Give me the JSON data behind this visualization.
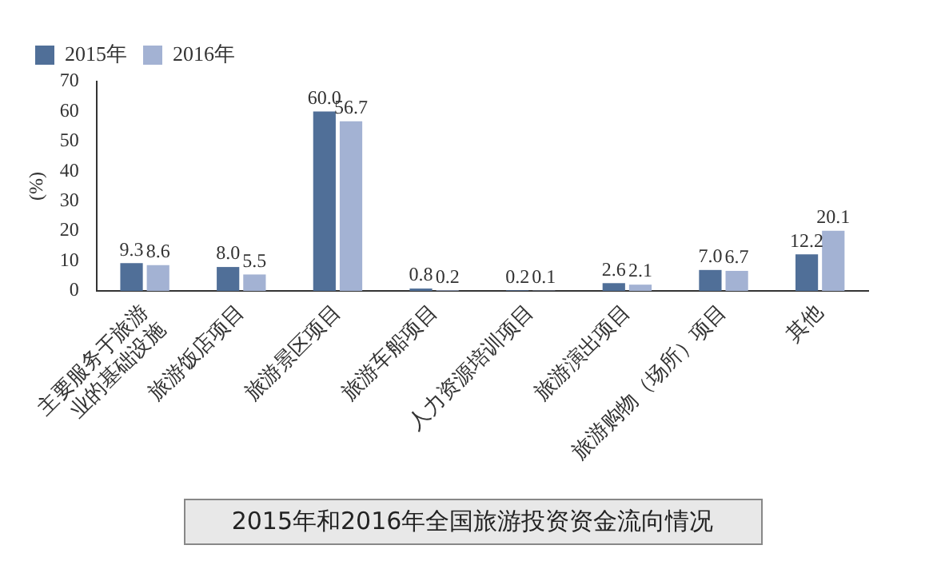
{
  "chart_data": {
    "type": "bar",
    "title": "2015年和2016年全国旅游投资资金流向情况",
    "ylabel": "(%)",
    "categories": [
      "主要服务于旅游业的基础设施",
      "旅游饭店项目",
      "旅游景区项目",
      "旅游车船项目",
      "人力资源培训项目",
      "旅游演出项目",
      "旅游购物（场所）项目",
      "其他"
    ],
    "series": [
      {
        "name": "2015年",
        "color": "#506f98",
        "values": [
          9.3,
          8.0,
          60.0,
          0.8,
          0.2,
          2.6,
          7.0,
          12.2
        ],
        "value_labels": [
          "9.3",
          "8.0",
          "60.0",
          "0.8",
          "0.2",
          "2.6",
          "7.0",
          "12.2"
        ]
      },
      {
        "name": "2016年",
        "color": "#a3b2d3",
        "values": [
          8.6,
          5.5,
          56.7,
          0.2,
          0.1,
          2.1,
          6.7,
          20.1
        ],
        "value_labels": [
          "8.6",
          "5.5",
          "56.7",
          "0.2",
          "0.1",
          "2.1",
          "6.7",
          "20.1"
        ]
      }
    ],
    "ylim": [
      0,
      70
    ],
    "yticks": [
      0,
      10,
      20,
      30,
      40,
      50,
      60,
      70
    ],
    "grid": false,
    "legend": "top left"
  }
}
